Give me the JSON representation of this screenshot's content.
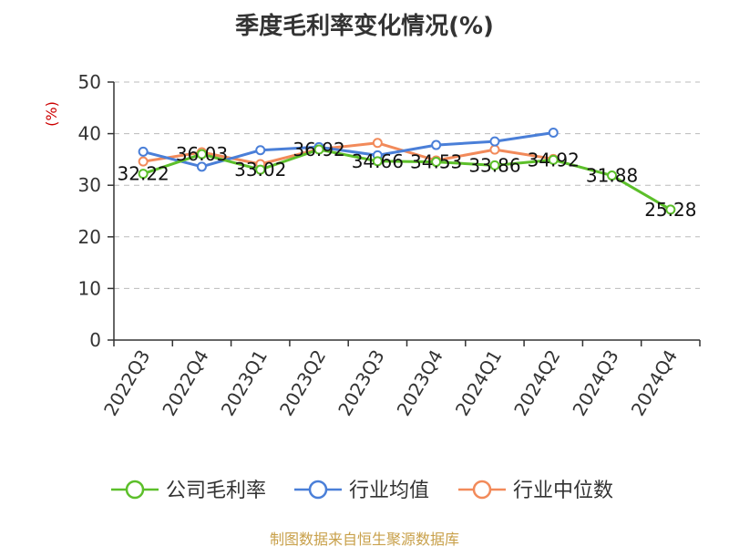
{
  "title": "季度毛利率变化情况(%)",
  "source": "制图数据来自恒生聚源数据库",
  "chart_data": {
    "type": "line",
    "title": "季度毛利率变化情况(%)",
    "ylabel": "(%)",
    "xlabel": "",
    "ylim": [
      0,
      50
    ],
    "yticks": [
      0,
      10,
      20,
      30,
      40,
      50
    ],
    "grid": true,
    "legend_placement": "bottom",
    "categories": [
      "2022Q3",
      "2022Q4",
      "2023Q1",
      "2023Q2",
      "2023Q3",
      "2023Q4",
      "2024Q1",
      "2024Q2",
      "2024Q3",
      "2024Q4"
    ],
    "series": [
      {
        "name": "公司毛利率",
        "color": "#5cbf2a",
        "values": [
          32.22,
          36.03,
          33.02,
          36.92,
          34.66,
          34.53,
          33.86,
          34.92,
          31.88,
          25.28
        ],
        "labels": [
          "32.22",
          "36.03",
          "33.02",
          "36.92",
          "34.66",
          "34.53",
          "33.86",
          "34.92",
          "31.88",
          "25.28"
        ]
      },
      {
        "name": "行业均值",
        "color": "#4a7fd8",
        "values": [
          36.5,
          33.6,
          36.8,
          37.4,
          35.8,
          37.8,
          38.5,
          40.2,
          null,
          null
        ]
      },
      {
        "name": "行业中位数",
        "color": "#f28a5a",
        "values": [
          34.6,
          36.4,
          34.1,
          37.0,
          38.2,
          34.8,
          36.9,
          35.1,
          null,
          null
        ]
      }
    ]
  }
}
